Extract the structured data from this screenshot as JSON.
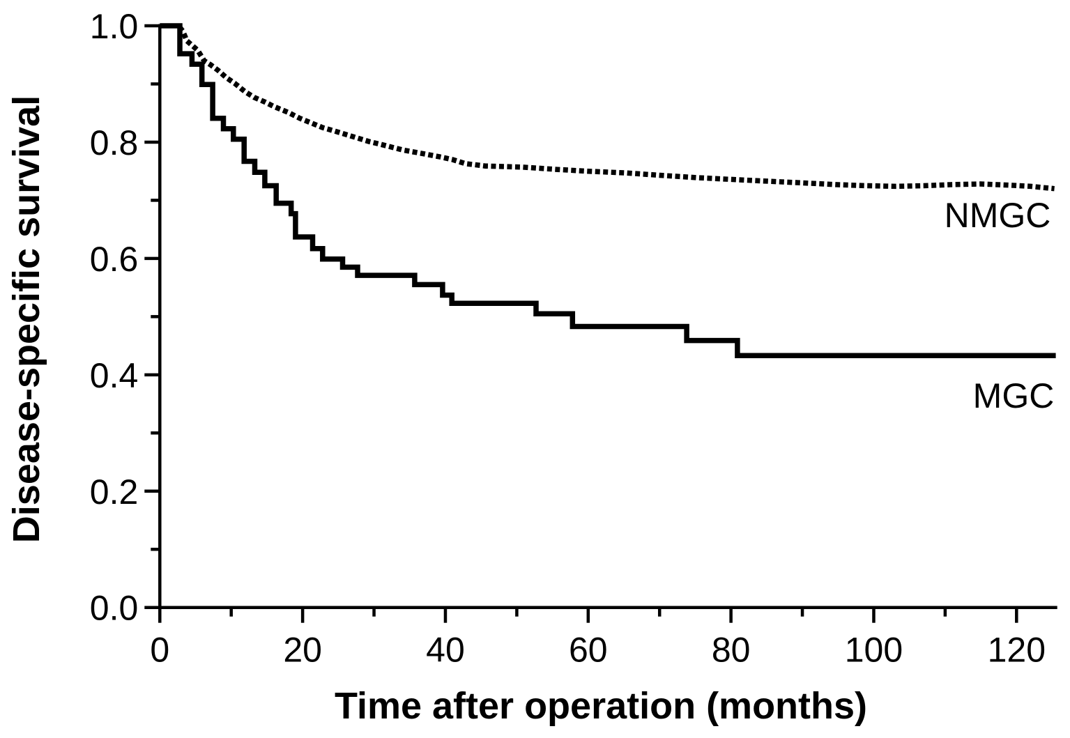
{
  "figure_type": "kaplan-meier-survival-plot",
  "colors": {
    "foreground": "#000000",
    "background": "#ffffff"
  },
  "chart_data": {
    "type": "line",
    "title": "",
    "xlabel": "Time after operation (months)",
    "ylabel": "Disease-specific survival",
    "xlim": [
      0,
      125.7
    ],
    "ylim": [
      0.0,
      1.0
    ],
    "grid": false,
    "legend_position": "inline-right-of-curves",
    "x_ticks": [
      {
        "value": 0,
        "label": "0"
      },
      {
        "value": 20,
        "label": "20"
      },
      {
        "value": 40,
        "label": "40"
      },
      {
        "value": 60,
        "label": "60"
      },
      {
        "value": 80,
        "label": "80"
      },
      {
        "value": 100,
        "label": "100"
      },
      {
        "value": 120,
        "label": "120"
      }
    ],
    "x_minor_ticks": [
      10,
      30,
      50,
      70,
      90,
      110
    ],
    "y_ticks": [
      {
        "value": 0.0,
        "label": "0.0"
      },
      {
        "value": 0.2,
        "label": "0.2"
      },
      {
        "value": 0.4,
        "label": "0.4"
      },
      {
        "value": 0.6,
        "label": "0.6"
      },
      {
        "value": 0.8,
        "label": "0.8"
      },
      {
        "value": 1.0,
        "label": "1.0"
      }
    ],
    "y_minor_ticks": [
      0.1,
      0.3,
      0.5,
      0.7,
      0.9
    ],
    "series": [
      {
        "name": "NMGC",
        "line_style": "dotted",
        "curve_type": "polyline",
        "points": [
          [
            2.75,
            0.998
          ],
          [
            3.2,
            0.991
          ],
          [
            3.8,
            0.974
          ],
          [
            5.3,
            0.958
          ],
          [
            6.2,
            0.94
          ],
          [
            7.1,
            0.933
          ],
          [
            8.2,
            0.923
          ],
          [
            9.3,
            0.911
          ],
          [
            10.5,
            0.901
          ],
          [
            11.9,
            0.887
          ],
          [
            13.2,
            0.877
          ],
          [
            14.7,
            0.869
          ],
          [
            16.0,
            0.861
          ],
          [
            18.0,
            0.851
          ],
          [
            19.6,
            0.841
          ],
          [
            21.2,
            0.833
          ],
          [
            22.8,
            0.825
          ],
          [
            24.5,
            0.819
          ],
          [
            26.1,
            0.813
          ],
          [
            27.7,
            0.807
          ],
          [
            29.3,
            0.801
          ],
          [
            31.0,
            0.796
          ],
          [
            32.6,
            0.791
          ],
          [
            34.2,
            0.786
          ],
          [
            36.5,
            0.781
          ],
          [
            39.1,
            0.775
          ],
          [
            41.0,
            0.77
          ],
          [
            42.8,
            0.763
          ],
          [
            45.6,
            0.759
          ],
          [
            50.8,
            0.757
          ],
          [
            55.7,
            0.753
          ],
          [
            60.0,
            0.75
          ],
          [
            65.4,
            0.747
          ],
          [
            70.0,
            0.743
          ],
          [
            75.2,
            0.739
          ],
          [
            80.0,
            0.736
          ],
          [
            84.9,
            0.733
          ],
          [
            90.0,
            0.73
          ],
          [
            94.7,
            0.727
          ],
          [
            99.0,
            0.725
          ],
          [
            103.0,
            0.724
          ],
          [
            107.0,
            0.725
          ],
          [
            111.0,
            0.727
          ],
          [
            115.0,
            0.728
          ],
          [
            119.0,
            0.726
          ],
          [
            122.0,
            0.724
          ],
          [
            125.3,
            0.72
          ]
        ]
      },
      {
        "name": "MGC",
        "line_style": "solid",
        "curve_type": "step",
        "extend_to_x": 125.5,
        "points": [
          [
            0,
            1.0
          ],
          [
            2.8,
            0.952
          ],
          [
            4.5,
            0.934
          ],
          [
            5.9,
            0.899
          ],
          [
            7.4,
            0.841
          ],
          [
            8.9,
            0.823
          ],
          [
            10.3,
            0.805
          ],
          [
            11.8,
            0.767
          ],
          [
            13.3,
            0.748
          ],
          [
            14.7,
            0.725
          ],
          [
            16.3,
            0.695
          ],
          [
            18.4,
            0.677
          ],
          [
            19.0,
            0.637
          ],
          [
            21.4,
            0.617
          ],
          [
            22.8,
            0.599
          ],
          [
            25.6,
            0.585
          ],
          [
            27.7,
            0.571
          ],
          [
            35.7,
            0.555
          ],
          [
            39.6,
            0.537
          ],
          [
            40.9,
            0.523
          ],
          [
            52.7,
            0.505
          ],
          [
            57.8,
            0.483
          ],
          [
            73.8,
            0.459
          ],
          [
            80.9,
            0.433
          ]
        ]
      }
    ]
  }
}
